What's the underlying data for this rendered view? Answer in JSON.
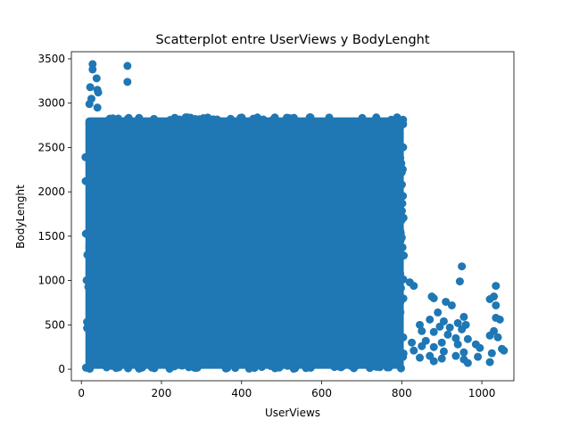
{
  "chart_data": {
    "type": "scatter",
    "title": "Scatterplot entre UserViews y BodyLenght",
    "xlabel": "UserViews",
    "ylabel": "BodyLenght",
    "xlim": [
      -25,
      1080
    ],
    "ylim": [
      -130,
      3580
    ],
    "xticks": [
      0,
      200,
      400,
      600,
      800,
      1000
    ],
    "yticks": [
      0,
      500,
      1000,
      1500,
      2000,
      2500,
      3000,
      3500
    ],
    "marker_color": "#1f77b4",
    "grid": false,
    "legend": "none",
    "dense_region": {
      "x_range": [
        10,
        805
      ],
      "y_range": [
        5,
        2840
      ]
    },
    "notable_points": [
      {
        "x": 28,
        "y": 3440
      },
      {
        "x": 28,
        "y": 3380
      },
      {
        "x": 115,
        "y": 3420
      },
      {
        "x": 115,
        "y": 3240
      },
      {
        "x": 38,
        "y": 3280
      },
      {
        "x": 40,
        "y": 3150
      },
      {
        "x": 42,
        "y": 3120
      },
      {
        "x": 22,
        "y": 3180
      },
      {
        "x": 25,
        "y": 3050
      },
      {
        "x": 20,
        "y": 2990
      },
      {
        "x": 40,
        "y": 2950
      },
      {
        "x": 20,
        "y": 2770
      },
      {
        "x": 25,
        "y": 2600
      },
      {
        "x": 22,
        "y": 2560
      },
      {
        "x": 20,
        "y": 2320
      },
      {
        "x": 22,
        "y": 1950
      },
      {
        "x": 15,
        "y": 1290
      },
      {
        "x": 950,
        "y": 1160
      },
      {
        "x": 1035,
        "y": 940
      },
      {
        "x": 1030,
        "y": 820
      },
      {
        "x": 1020,
        "y": 790
      },
      {
        "x": 945,
        "y": 990
      },
      {
        "x": 820,
        "y": 980
      },
      {
        "x": 830,
        "y": 940
      },
      {
        "x": 875,
        "y": 820
      },
      {
        "x": 880,
        "y": 800
      },
      {
        "x": 910,
        "y": 760
      },
      {
        "x": 925,
        "y": 720
      },
      {
        "x": 1035,
        "y": 720
      },
      {
        "x": 890,
        "y": 640
      },
      {
        "x": 955,
        "y": 590
      },
      {
        "x": 1035,
        "y": 580
      },
      {
        "x": 1045,
        "y": 560
      },
      {
        "x": 870,
        "y": 560
      },
      {
        "x": 905,
        "y": 540
      },
      {
        "x": 940,
        "y": 520
      },
      {
        "x": 960,
        "y": 500
      },
      {
        "x": 845,
        "y": 500
      },
      {
        "x": 895,
        "y": 480
      },
      {
        "x": 920,
        "y": 470
      },
      {
        "x": 950,
        "y": 450
      },
      {
        "x": 1030,
        "y": 430
      },
      {
        "x": 850,
        "y": 430
      },
      {
        "x": 880,
        "y": 420
      },
      {
        "x": 915,
        "y": 390
      },
      {
        "x": 1020,
        "y": 380
      },
      {
        "x": 1040,
        "y": 360
      },
      {
        "x": 935,
        "y": 350
      },
      {
        "x": 965,
        "y": 340
      },
      {
        "x": 860,
        "y": 320
      },
      {
        "x": 825,
        "y": 300
      },
      {
        "x": 900,
        "y": 300
      },
      {
        "x": 940,
        "y": 280
      },
      {
        "x": 985,
        "y": 280
      },
      {
        "x": 850,
        "y": 260
      },
      {
        "x": 880,
        "y": 250
      },
      {
        "x": 995,
        "y": 240
      },
      {
        "x": 1050,
        "y": 230
      },
      {
        "x": 1055,
        "y": 210
      },
      {
        "x": 830,
        "y": 210
      },
      {
        "x": 905,
        "y": 200
      },
      {
        "x": 955,
        "y": 190
      },
      {
        "x": 1025,
        "y": 180
      },
      {
        "x": 870,
        "y": 150
      },
      {
        "x": 935,
        "y": 150
      },
      {
        "x": 990,
        "y": 140
      },
      {
        "x": 845,
        "y": 130
      },
      {
        "x": 900,
        "y": 120
      },
      {
        "x": 955,
        "y": 110
      },
      {
        "x": 1020,
        "y": 80
      },
      {
        "x": 880,
        "y": 90
      },
      {
        "x": 965,
        "y": 70
      }
    ]
  }
}
